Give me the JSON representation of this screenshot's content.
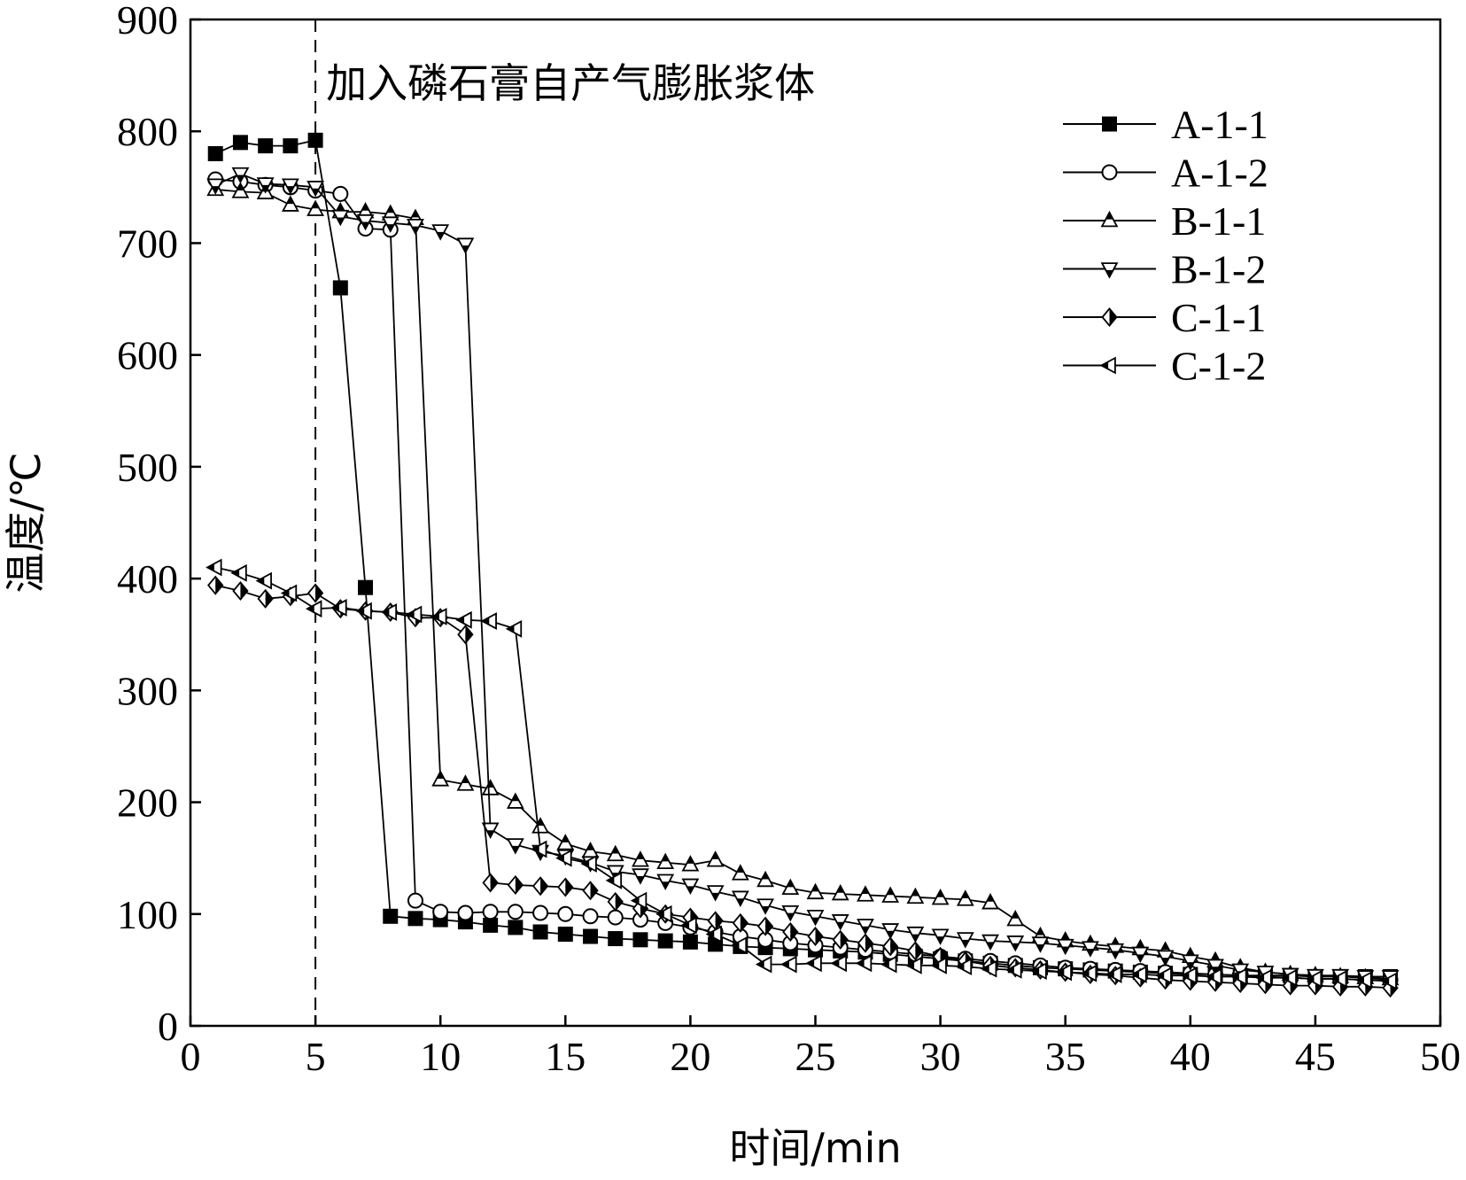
{
  "chart_data": {
    "type": "line",
    "xlabel": "时间/min",
    "ylabel": "温度/℃",
    "xlim": [
      0,
      50
    ],
    "ylim": [
      0,
      900
    ],
    "xticks": [
      0,
      5,
      10,
      15,
      20,
      25,
      30,
      35,
      40,
      45,
      50
    ],
    "yticks": [
      0,
      100,
      200,
      300,
      400,
      500,
      600,
      700,
      800,
      900
    ],
    "grid": false,
    "legend_position": "top-right",
    "annotations": [
      {
        "text": "加入磷石膏自产气膨胀浆体",
        "x": 5,
        "marker_line": "vertical-dashed"
      }
    ],
    "series": [
      {
        "name": "A-1-1",
        "marker": "square-filled",
        "x": [
          1,
          2,
          3,
          4,
          5,
          6,
          7,
          8,
          9,
          10,
          11,
          12,
          13,
          14,
          15,
          16,
          17,
          18,
          19,
          20,
          21,
          22,
          23,
          24,
          25,
          26,
          27,
          28,
          29,
          30,
          31,
          32,
          33,
          34,
          35,
          36,
          37,
          38,
          39,
          40,
          41,
          42,
          43,
          44,
          45,
          46,
          47,
          48
        ],
        "y": [
          780,
          790,
          787,
          787,
          792,
          660,
          392,
          98,
          96,
          95,
          93,
          90,
          88,
          84,
          82,
          80,
          78,
          77,
          76,
          75,
          73,
          71,
          70,
          69,
          68,
          67,
          66,
          64,
          62,
          60,
          58,
          56,
          54,
          52,
          51,
          50,
          49,
          48,
          47,
          46,
          46,
          45,
          45,
          45,
          44,
          44,
          44,
          44
        ]
      },
      {
        "name": "A-1-2",
        "marker": "circle-open",
        "x": [
          1,
          2,
          3,
          4,
          5,
          6,
          7,
          8,
          9,
          10,
          11,
          12,
          13,
          14,
          15,
          16,
          17,
          18,
          19,
          20,
          21,
          22,
          23,
          24,
          25,
          26,
          27,
          28,
          29,
          30,
          31,
          32,
          33,
          34,
          35,
          36,
          37,
          38,
          39,
          40,
          41,
          42,
          43,
          44,
          45,
          46,
          47,
          48
        ],
        "y": [
          757,
          755,
          752,
          750,
          747,
          744,
          713,
          712,
          112,
          102,
          101,
          102,
          102,
          101,
          100,
          98,
          97,
          95,
          92,
          88,
          84,
          80,
          77,
          74,
          72,
          70,
          68,
          66,
          64,
          62,
          60,
          58,
          56,
          54,
          52,
          51,
          50,
          49,
          48,
          47,
          46,
          45,
          44,
          43,
          42,
          42,
          41,
          41
        ]
      },
      {
        "name": "B-1-1",
        "marker": "triangle-up-half",
        "x": [
          1,
          2,
          3,
          4,
          5,
          6,
          7,
          8,
          9,
          10,
          11,
          12,
          13,
          14,
          15,
          16,
          17,
          18,
          19,
          20,
          21,
          22,
          23,
          24,
          25,
          26,
          27,
          28,
          29,
          30,
          31,
          32,
          33,
          34,
          35,
          36,
          37,
          38,
          39,
          40,
          41,
          42,
          43,
          44,
          45,
          46,
          47,
          48
        ],
        "y": [
          748,
          746,
          745,
          734,
          730,
          728,
          728,
          726,
          722,
          220,
          216,
          212,
          200,
          178,
          163,
          156,
          153,
          148,
          146,
          144,
          148,
          136,
          130,
          123,
          119,
          118,
          117,
          116,
          115,
          114,
          113,
          110,
          95,
          80,
          76,
          73,
          71,
          69,
          67,
          62,
          58,
          52,
          48,
          46,
          45,
          44,
          43,
          42
        ]
      },
      {
        "name": "B-1-2",
        "marker": "triangle-down-half",
        "x": [
          1,
          2,
          3,
          4,
          5,
          6,
          7,
          8,
          9,
          10,
          11,
          12,
          13,
          14,
          15,
          16,
          17,
          18,
          19,
          20,
          21,
          22,
          23,
          24,
          25,
          26,
          27,
          28,
          29,
          30,
          31,
          32,
          33,
          34,
          35,
          36,
          37,
          38,
          39,
          40,
          41,
          42,
          43,
          44,
          45,
          46,
          47,
          48
        ],
        "y": [
          752,
          762,
          753,
          752,
          750,
          724,
          720,
          718,
          716,
          711,
          699,
          176,
          162,
          156,
          152,
          146,
          138,
          135,
          130,
          126,
          120,
          115,
          108,
          102,
          98,
          94,
          90,
          86,
          83,
          81,
          78,
          76,
          75,
          74,
          72,
          70,
          68,
          65,
          62,
          58,
          54,
          50,
          48,
          46,
          45,
          45,
          44,
          44
        ]
      },
      {
        "name": "C-1-1",
        "marker": "diamond-half",
        "x": [
          1,
          2,
          3,
          4,
          5,
          6,
          7,
          8,
          9,
          10,
          11,
          12,
          13,
          14,
          15,
          16,
          17,
          18,
          19,
          20,
          21,
          22,
          23,
          24,
          25,
          26,
          27,
          28,
          29,
          30,
          31,
          32,
          33,
          34,
          35,
          36,
          37,
          38,
          39,
          40,
          41,
          42,
          43,
          44,
          45,
          46,
          47,
          48
        ],
        "y": [
          394,
          389,
          382,
          384,
          387,
          373,
          371,
          370,
          365,
          365,
          350,
          128,
          126,
          125,
          124,
          121,
          111,
          105,
          100,
          97,
          94,
          92,
          89,
          84,
          80,
          77,
          74,
          71,
          67,
          62,
          58,
          54,
          52,
          50,
          48,
          46,
          45,
          43,
          41,
          40,
          39,
          38,
          37,
          36,
          36,
          35,
          35,
          34
        ]
      },
      {
        "name": "C-1-2",
        "marker": "triangle-left-half",
        "x": [
          1,
          2,
          3,
          4,
          5,
          6,
          7,
          8,
          9,
          10,
          11,
          12,
          13,
          14,
          15,
          16,
          17,
          18,
          19,
          20,
          21,
          22,
          23,
          24,
          25,
          26,
          27,
          28,
          29,
          30,
          31,
          32,
          33,
          34,
          35,
          36,
          37,
          38,
          39,
          40,
          41,
          42,
          43,
          44,
          45,
          46,
          47,
          48
        ],
        "y": [
          410,
          405,
          398,
          387,
          373,
          374,
          371,
          370,
          368,
          366,
          363,
          362,
          355,
          158,
          150,
          145,
          130,
          112,
          100,
          90,
          82,
          72,
          55,
          55,
          56,
          56,
          56,
          55,
          54,
          54,
          53,
          51,
          50,
          49,
          48,
          47,
          46,
          46,
          45,
          45,
          44,
          44,
          43,
          43,
          42,
          42,
          41,
          40
        ]
      }
    ]
  }
}
